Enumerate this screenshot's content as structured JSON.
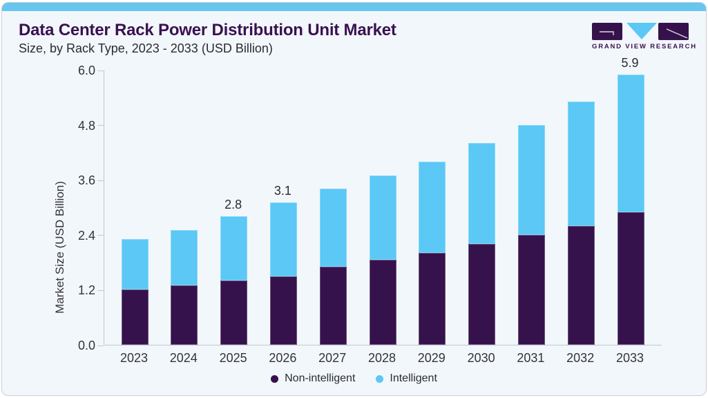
{
  "header": {
    "title": "Data Center Rack Power Distribution Unit Market",
    "subtitle": "Size, by Rack Type, 2023 - 2033 (USD Billion)"
  },
  "logo": {
    "brand": "GRAND VIEW RESEARCH"
  },
  "chart_data": {
    "type": "bar",
    "stacked": true,
    "title": "Data Center Rack Power Distribution Unit Market",
    "subtitle": "Size, by Rack Type, 2023 - 2033 (USD Billion)",
    "xlabel": "",
    "ylabel": "Market Size (USD Billion)",
    "ylim": [
      0,
      6.0
    ],
    "yticks": [
      "0.0",
      "1.2",
      "2.4",
      "3.6",
      "4.8",
      "6.0"
    ],
    "grid": false,
    "legend_position": "bottom",
    "categories": [
      "2023",
      "2024",
      "2025",
      "2026",
      "2027",
      "2028",
      "2029",
      "2030",
      "2031",
      "2032",
      "2033"
    ],
    "series": [
      {
        "name": "Non-intelligent",
        "color": "#36124d",
        "values": [
          1.2,
          1.3,
          1.4,
          1.5,
          1.7,
          1.85,
          2.0,
          2.2,
          2.4,
          2.6,
          2.9
        ]
      },
      {
        "name": "Intelligent",
        "color": "#5bc8f5",
        "values": [
          1.1,
          1.2,
          1.4,
          1.6,
          1.7,
          1.85,
          2.0,
          2.2,
          2.4,
          2.7,
          3.0
        ]
      }
    ],
    "totals": [
      2.3,
      2.5,
      2.8,
      3.1,
      3.4,
      3.7,
      4.0,
      4.4,
      4.8,
      5.3,
      5.9
    ],
    "total_labels": {
      "2025": "2.8",
      "2026": "3.1",
      "2033": "5.9"
    }
  },
  "colors": {
    "accent_strip": "#66c6ef",
    "card_bg": "#f2f7fb",
    "title_text": "#3a1150",
    "body_text": "#33333b",
    "axis_line": "#c3c7ce",
    "bar_non_intelligent": "#36124d",
    "bar_intelligent": "#5bc8f5"
  }
}
